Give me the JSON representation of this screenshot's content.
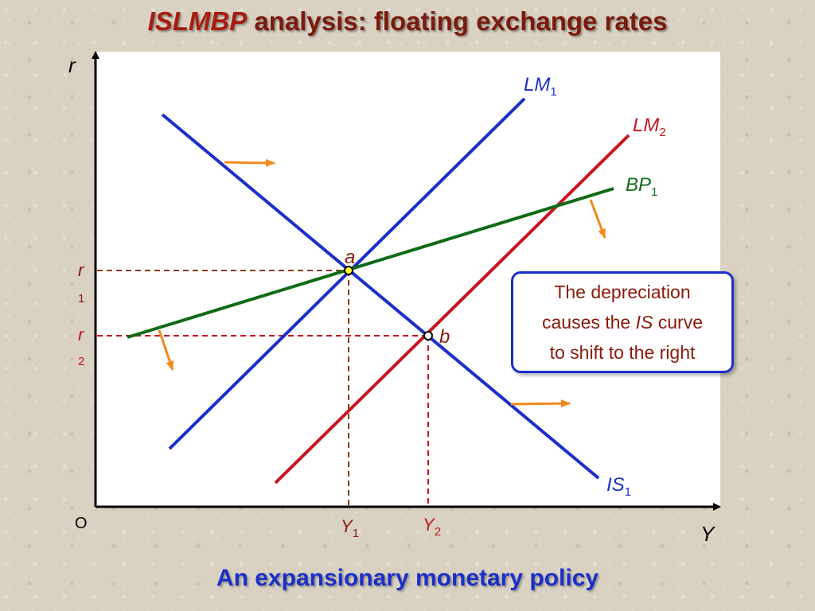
{
  "title": {
    "italic": "ISLMBP",
    "rest": " analysis: floating exchange rates"
  },
  "caption": "An expansionary monetary policy",
  "callout": {
    "line1": "The depreciation",
    "line2_pre": "causes the ",
    "line2_ital": "IS",
    "line2_post": " curve",
    "line3": "to shift to the right"
  },
  "axes": {
    "y_label": "r",
    "x_label": "Y",
    "origin": "O"
  },
  "ticks": {
    "r1_main": "r",
    "r1_sub": "1",
    "r2_main": "r",
    "r2_sub": "2",
    "y1_main": "Y",
    "y1_sub": "1",
    "y2_main": "Y",
    "y2_sub": "2"
  },
  "curves": {
    "lm1": {
      "main": "LM",
      "sub": "1"
    },
    "lm2": {
      "main": "LM",
      "sub": "2"
    },
    "bp1": {
      "main": "BP",
      "sub": "1"
    },
    "is1": {
      "main": "IS",
      "sub": "1"
    }
  },
  "points": {
    "a": "a",
    "b": "b"
  },
  "colors": {
    "blue": "#1a2fc9",
    "red": "#c8141e",
    "green": "#0f6b16",
    "orange": "#f08a1c",
    "brown": "#8b3a10",
    "title": "#7a1a0c"
  }
}
